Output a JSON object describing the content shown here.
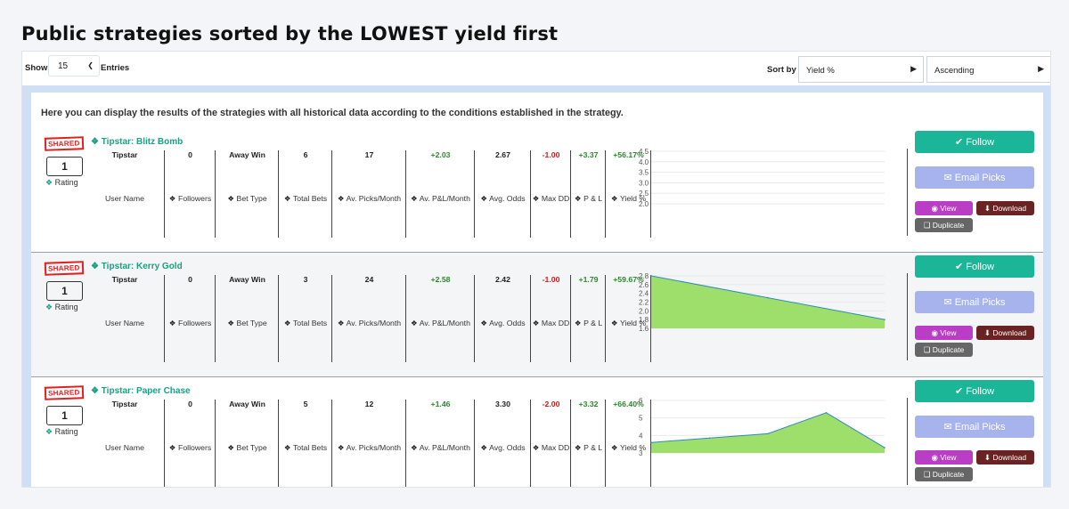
{
  "page_title": "Public strategies sorted by the LOWEST yield first",
  "toolbar": {
    "show_label": "Show",
    "entries_value": "15",
    "entries_label": "Entries",
    "sort_by_label": "Sort by",
    "sort_field": "Yield %",
    "sort_order": "Ascending"
  },
  "intro_text": "Here you can display the results of the strategies with all historical data according to the conditions established in the strategy.",
  "labels": {
    "shared": "SHARED",
    "rating": "Rating",
    "user_name": "User Name",
    "followers": "Followers",
    "bet_type": "Bet Type",
    "total_bets": "Total Bets",
    "av_picks_month": "Av. Picks/Month",
    "av_pl_month": "Av. P&L/Month",
    "avg_odds": "Avg. Odds",
    "max_dd": "Max DD",
    "pl": "P & L",
    "yield": "Yield %"
  },
  "buttons": {
    "follow": "Follow",
    "email_picks": "Email Picks",
    "view": "View",
    "download": "Download",
    "duplicate": "Duplicate"
  },
  "colors": {
    "accent": "#1bb597",
    "positive": "#2a8a2a",
    "negative": "#d01919",
    "chart_fill": "#9ddf6a",
    "chart_line": "#2e8bc0"
  },
  "strategies": [
    {
      "name": "Tipstar: Blitz Bomb",
      "rating": "1",
      "user_name": "Tipstar",
      "followers": "0",
      "bet_type": "Away Win",
      "total_bets": "6",
      "av_picks_month": "17",
      "av_pl_month": "+2.03",
      "avg_odds": "2.67",
      "max_dd": "-1.00",
      "pl": "+3.37",
      "yield": "+56.17%",
      "chart": {
        "ticks": [
          "4.5",
          "4.0",
          "3.5",
          "3.0",
          "2.5",
          "2.0"
        ],
        "min": 2.0,
        "max": 4.5,
        "values": []
      }
    },
    {
      "name": "Tipstar: Kerry Gold",
      "rating": "1",
      "user_name": "Tipstar",
      "followers": "0",
      "bet_type": "Away Win",
      "total_bets": "3",
      "av_picks_month": "24",
      "av_pl_month": "+2.58",
      "avg_odds": "2.42",
      "max_dd": "-1.00",
      "pl": "+1.79",
      "yield": "+59.67%",
      "chart": {
        "ticks": [
          "2.8",
          "2.6",
          "2.4",
          "2.2",
          "2.0",
          "1.8",
          "1.6"
        ],
        "min": 1.6,
        "max": 2.8,
        "values": [
          2.8,
          2.3,
          1.8
        ]
      }
    },
    {
      "name": "Tipstar: Paper Chase",
      "rating": "1",
      "user_name": "Tipstar",
      "followers": "0",
      "bet_type": "Away Win",
      "total_bets": "5",
      "av_picks_month": "12",
      "av_pl_month": "+1.46",
      "avg_odds": "3.30",
      "max_dd": "-2.00",
      "pl": "+3.32",
      "yield": "+66.40%",
      "chart": {
        "ticks": [
          "6",
          "5",
          "4",
          "3"
        ],
        "min": 3,
        "max": 6,
        "values": [
          3.6,
          3.85,
          4.1,
          5.3,
          3.3
        ]
      }
    }
  ]
}
